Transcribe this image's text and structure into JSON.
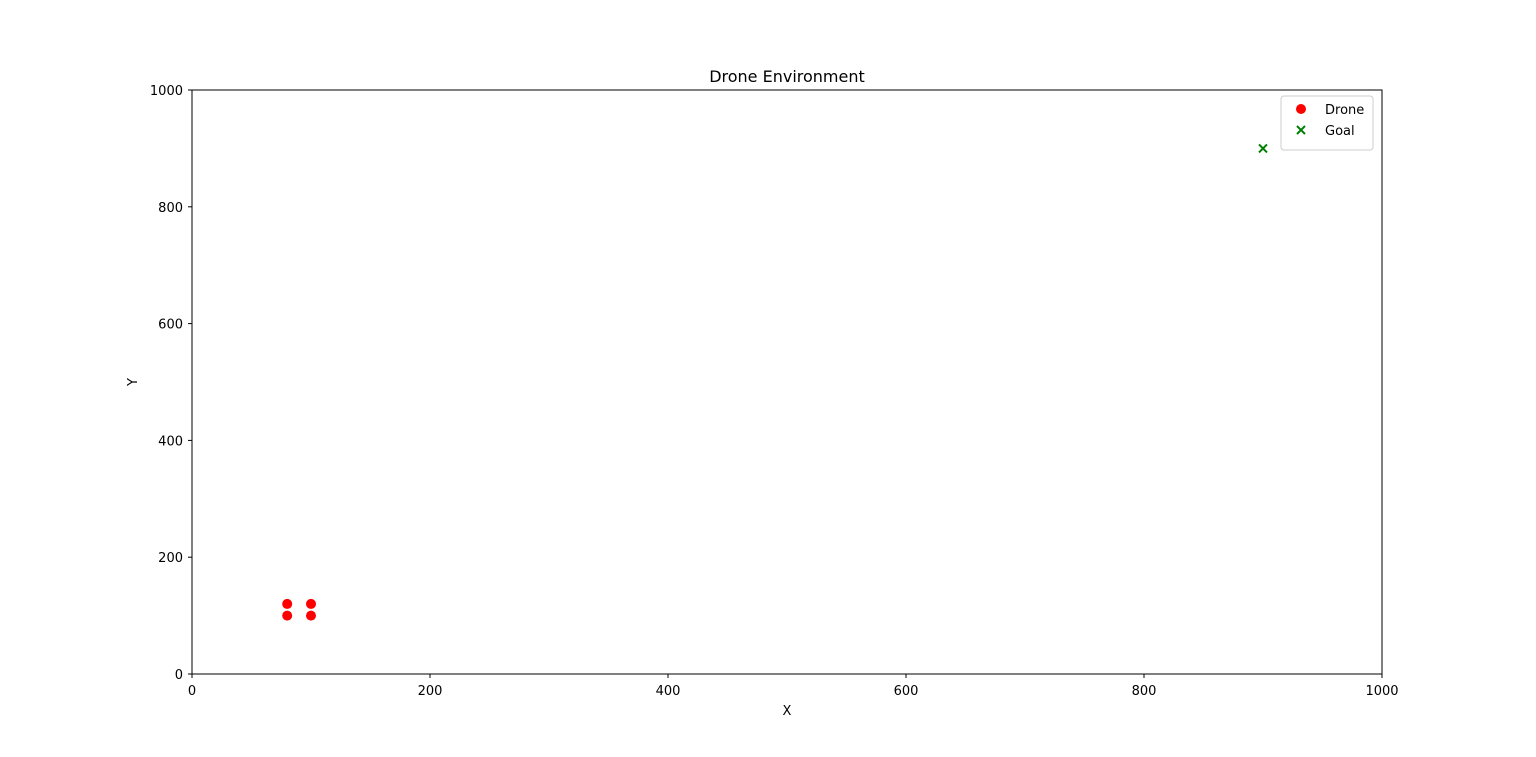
{
  "chart_data": {
    "type": "scatter",
    "title": "Drone Environment",
    "xlabel": "X",
    "ylabel": "Y",
    "xlim": [
      0,
      1000
    ],
    "ylim": [
      0,
      1000
    ],
    "xticks": [
      0,
      200,
      400,
      600,
      800,
      1000
    ],
    "yticks": [
      0,
      200,
      400,
      600,
      800,
      1000
    ],
    "grid": false,
    "legend_placement": "top-right",
    "series": [
      {
        "name": "Drone",
        "marker": "circle",
        "color": "#ff0000",
        "points": [
          {
            "x": 80,
            "y": 100
          },
          {
            "x": 80,
            "y": 120
          },
          {
            "x": 100,
            "y": 100
          },
          {
            "x": 100,
            "y": 120
          }
        ]
      },
      {
        "name": "Goal",
        "marker": "x",
        "color": "#008000",
        "points": [
          {
            "x": 900,
            "y": 900
          }
        ]
      }
    ]
  }
}
